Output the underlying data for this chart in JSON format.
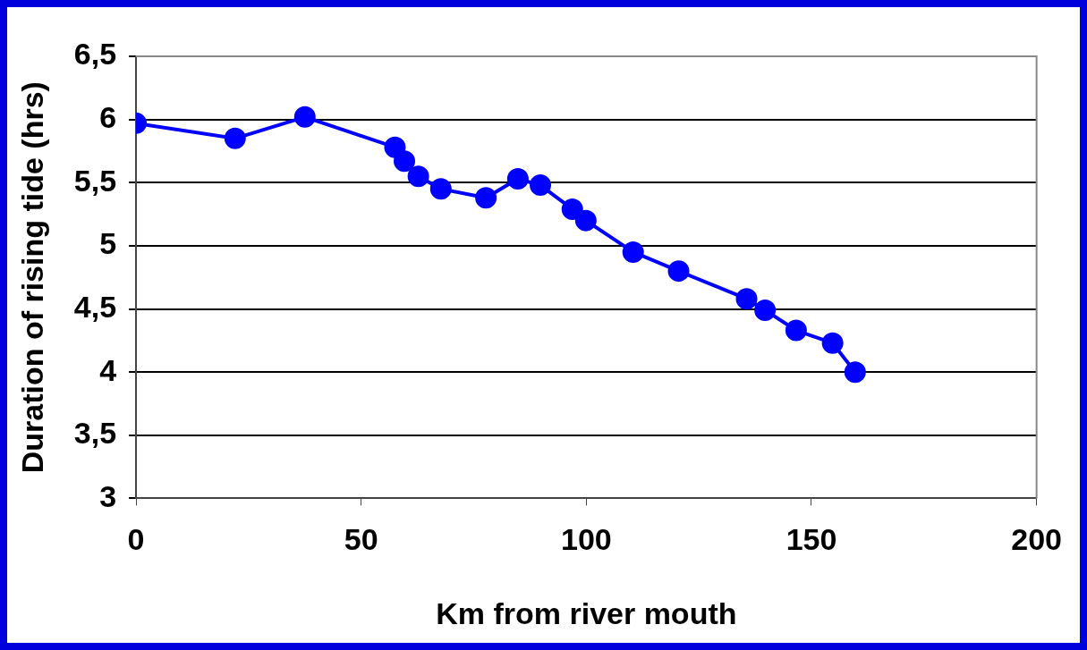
{
  "chart_data": {
    "type": "line",
    "xlabel": "Km from river mouth",
    "ylabel": "Duration of rising tide (hrs)",
    "x": [
      0,
      22,
      37.5,
      57.5,
      59.6,
      62.7,
      67.7,
      77.7,
      84.8,
      89.8,
      96.9,
      99.9,
      110.4,
      120.5,
      135.6,
      139.7,
      146.6,
      154.7,
      159.7
    ],
    "series": [
      {
        "color": "#0000ff",
        "values": [
          5.97,
          5.85,
          6.02,
          5.78,
          5.67,
          5.55,
          5.45,
          5.38,
          5.53,
          5.48,
          5.29,
          5.2,
          4.95,
          4.8,
          4.58,
          4.49,
          4.33,
          4.23,
          4.0
        ]
      }
    ],
    "xlim": [
      0,
      200
    ],
    "xticks": [
      0,
      50,
      100,
      150,
      200
    ],
    "ylim": [
      3,
      6.5
    ],
    "yticks": [
      3,
      {
        "value": 3.5,
        "label": "3,5"
      },
      4,
      {
        "value": 4.5,
        "label": "4,5"
      },
      5,
      {
        "value": 5.5,
        "label": "5,5"
      },
      6,
      {
        "value": 6.5,
        "label": "6,5"
      }
    ],
    "grid": "y",
    "legend": false,
    "marker": "circle",
    "line_style": "solid"
  }
}
